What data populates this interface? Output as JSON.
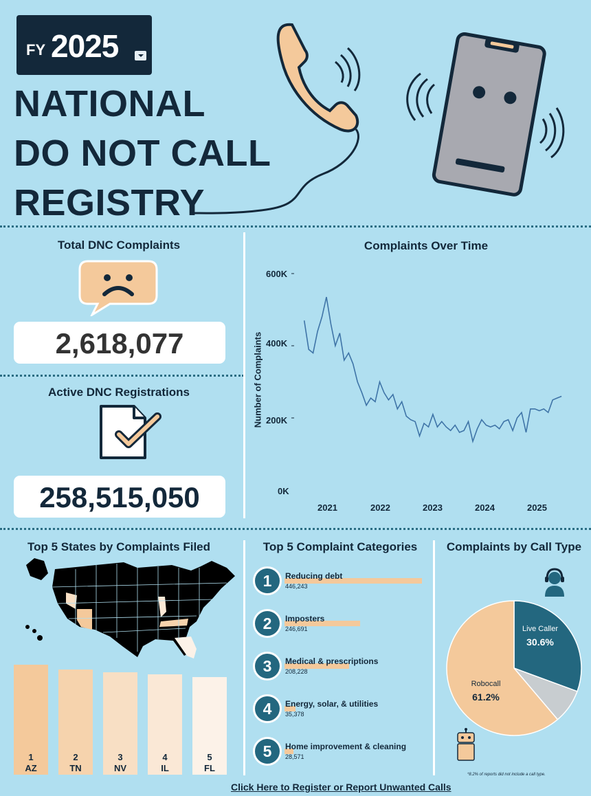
{
  "header": {
    "fy_label": "FY",
    "fy_year": "2025",
    "title_lines": [
      "NATIONAL",
      "DO NOT CALL",
      "REGISTRY"
    ]
  },
  "kpis": {
    "complaints_title": "Total DNC Complaints",
    "complaints_value": "2,618,077",
    "registrations_title": "Active DNC Registrations",
    "registrations_value": "258,515,050"
  },
  "chart_data": {
    "type": "line",
    "title": "Complaints Over Time",
    "ylabel": "Number of Complaints",
    "xlabel": "",
    "ylim": [
      0,
      600000
    ],
    "y_ticks": [
      "600K",
      "400K",
      "200K",
      "0K"
    ],
    "x_ticks": [
      "2021",
      "2022",
      "2023",
      "2024",
      "2025"
    ],
    "series": [
      {
        "values": [
          [
            2020.6,
            470000
          ],
          [
            2020.7,
            390000
          ],
          [
            2020.8,
            380000
          ],
          [
            2020.9,
            440000
          ],
          [
            2021.0,
            480000
          ],
          [
            2021.1,
            535000
          ],
          [
            2021.2,
            460000
          ],
          [
            2021.3,
            400000
          ],
          [
            2021.4,
            435000
          ],
          [
            2021.5,
            360000
          ],
          [
            2021.6,
            380000
          ],
          [
            2021.7,
            350000
          ],
          [
            2021.8,
            300000
          ],
          [
            2021.9,
            270000
          ],
          [
            2022.0,
            235000
          ],
          [
            2022.1,
            255000
          ],
          [
            2022.2,
            245000
          ],
          [
            2022.3,
            300000
          ],
          [
            2022.4,
            270000
          ],
          [
            2022.5,
            250000
          ],
          [
            2022.6,
            265000
          ],
          [
            2022.7,
            225000
          ],
          [
            2022.8,
            245000
          ],
          [
            2022.9,
            205000
          ],
          [
            2023.0,
            195000
          ],
          [
            2023.1,
            190000
          ],
          [
            2023.2,
            150000
          ],
          [
            2023.3,
            185000
          ],
          [
            2023.4,
            175000
          ],
          [
            2023.5,
            210000
          ],
          [
            2023.6,
            175000
          ],
          [
            2023.7,
            190000
          ],
          [
            2023.8,
            175000
          ],
          [
            2023.9,
            165000
          ],
          [
            2024.0,
            180000
          ],
          [
            2024.1,
            160000
          ],
          [
            2024.2,
            165000
          ],
          [
            2024.3,
            190000
          ],
          [
            2024.4,
            135000
          ],
          [
            2024.5,
            170000
          ],
          [
            2024.6,
            195000
          ],
          [
            2024.7,
            180000
          ],
          [
            2024.8,
            175000
          ],
          [
            2024.9,
            180000
          ],
          [
            2025.0,
            170000
          ],
          [
            2025.1,
            190000
          ],
          [
            2025.2,
            195000
          ],
          [
            2025.3,
            165000
          ],
          [
            2025.4,
            200000
          ],
          [
            2025.5,
            215000
          ],
          [
            2025.6,
            160000
          ],
          [
            2025.7,
            225000
          ],
          [
            2025.8,
            225000
          ],
          [
            2025.9,
            220000
          ],
          [
            2026.0,
            225000
          ],
          [
            2026.1,
            215000
          ],
          [
            2026.2,
            250000
          ],
          [
            2026.3,
            255000
          ],
          [
            2026.4,
            260000
          ]
        ]
      }
    ]
  },
  "states": {
    "title": "Top 5 States by Complaints Filed",
    "bars": [
      {
        "rank": "1",
        "code": "AZ",
        "value": 1.0,
        "color": "#f4c99b"
      },
      {
        "rank": "2",
        "code": "TN",
        "value": 0.955,
        "color": "#f6d3ad"
      },
      {
        "rank": "3",
        "code": "NV",
        "value": 0.93,
        "color": "#f8dfc4"
      },
      {
        "rank": "4",
        "code": "IL",
        "value": 0.91,
        "color": "#fae8d6"
      },
      {
        "rank": "5",
        "code": "FL",
        "value": 0.89,
        "color": "#fcf2e8"
      }
    ]
  },
  "categories": {
    "title": "Top 5 Complaint Categories",
    "items": [
      {
        "rank": "1",
        "name": "Reducing debt",
        "count": "446,243",
        "share": 1.0
      },
      {
        "rank": "2",
        "name": "Imposters",
        "count": "246,691",
        "share": 0.55
      },
      {
        "rank": "3",
        "name": "Medical & prescriptions",
        "count": "208,228",
        "share": 0.47
      },
      {
        "rank": "4",
        "name": "Energy, solar, & utilities",
        "count": "35,378",
        "share": 0.08
      },
      {
        "rank": "5",
        "name": "Home improvement & cleaning",
        "count": "28,571",
        "share": 0.064
      }
    ]
  },
  "call_type": {
    "title": "Complaints by Call Type",
    "slices": [
      {
        "label": "Live Caller",
        "pct": "30.6%",
        "value": 30.6,
        "color": "#23677f"
      },
      {
        "label": "",
        "pct": "",
        "value": 8.2,
        "color": "#c8cdd0"
      },
      {
        "label": "Robocall",
        "pct": "61.2%",
        "value": 61.2,
        "color": "#f4c99b"
      }
    ],
    "footnote": "*8.2% of reports did not include a call type."
  },
  "footer": {
    "link": "Click Here to Register or Report Unwanted Calls"
  }
}
